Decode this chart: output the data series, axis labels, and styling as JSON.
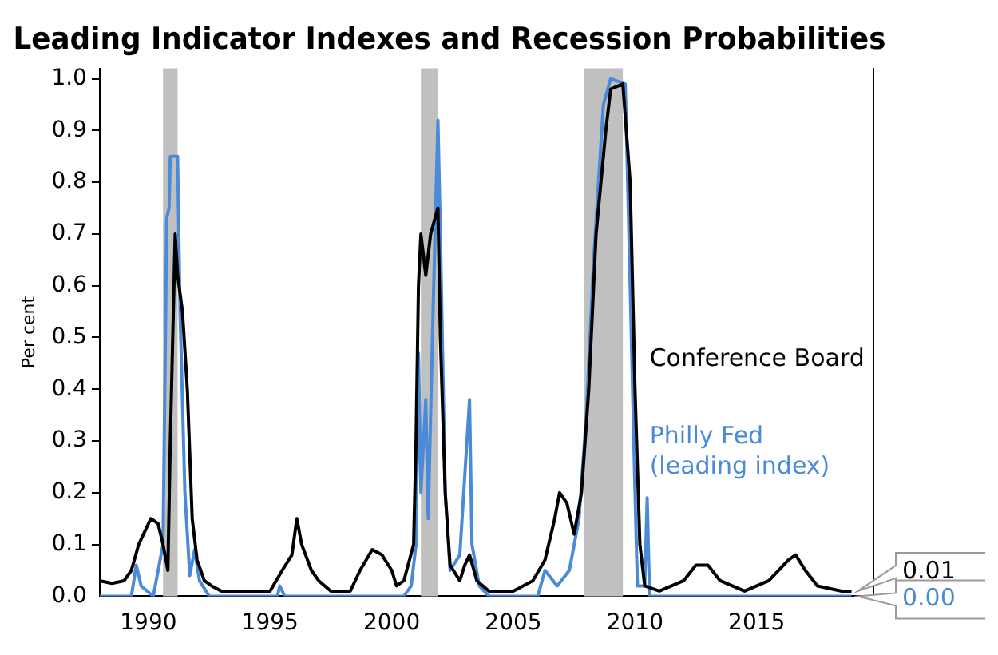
{
  "chart_data": {
    "type": "line",
    "title": "Leading Indicator Indexes and Recession Probabilities",
    "ylabel": "Per cent",
    "xlim": [
      1988,
      2019.8
    ],
    "xticks": [
      1990,
      1995,
      2000,
      2005,
      2010,
      2015
    ],
    "ylim": [
      0,
      1.02
    ],
    "yticks": [
      {
        "value": 0,
        "label": "0.0"
      },
      {
        "value": 0.1,
        "label": "0.1"
      },
      {
        "value": 0.2,
        "label": "0.2"
      },
      {
        "value": 0.3,
        "label": "0.3"
      },
      {
        "value": 0.4,
        "label": "0.4"
      },
      {
        "value": 0.5,
        "label": "0.5"
      },
      {
        "value": 0.6,
        "label": "0.6"
      },
      {
        "value": 0.7,
        "label": "0.7"
      },
      {
        "value": 0.8,
        "label": "0.8"
      },
      {
        "value": 0.9,
        "label": "0.9"
      },
      {
        "value": 1,
        "label": "1.0"
      }
    ],
    "grid": false,
    "legend": false,
    "marker": "none",
    "line_style": "solid",
    "bands": [
      {
        "axis": "x",
        "from": 1990.6,
        "to": 1991.2,
        "color": "#c0c0c0"
      },
      {
        "axis": "x",
        "from": 2001.2,
        "to": 2001.9,
        "color": "#c0c0c0"
      },
      {
        "axis": "x",
        "from": 2007.9,
        "to": 2009.5,
        "color": "#c0c0c0"
      }
    ],
    "series": [
      {
        "name": "Conference Board",
        "color": "#000000",
        "x": [
          1988,
          1988.5,
          1989,
          1989.3,
          1989.6,
          1989.9,
          1990.1,
          1990.4,
          1990.6,
          1990.8,
          1990.9,
          1991,
          1991.1,
          1991.2,
          1991.4,
          1991.6,
          1991.8,
          1992,
          1992.3,
          1992.6,
          1993,
          1994,
          1995,
          1995.5,
          1995.9,
          1996.1,
          1996.3,
          1996.7,
          1997,
          1997.5,
          1998.3,
          1998.7,
          1999.2,
          1999.6,
          2000,
          2000.2,
          2000.5,
          2000.9,
          2001,
          2001.1,
          2001.2,
          2001.4,
          2001.6,
          2001.9,
          2002,
          2002.2,
          2002.4,
          2002.8,
          2003,
          2003.2,
          2003.5,
          2004,
          2005,
          2005.8,
          2006.3,
          2006.7,
          2006.9,
          2007.2,
          2007.5,
          2007.8,
          2008.1,
          2008.4,
          2008.8,
          2009,
          2009.5,
          2009.8,
          2010,
          2010.2,
          2010.4,
          2011,
          2012,
          2012.5,
          2013,
          2013.5,
          2014.5,
          2015.5,
          2016.3,
          2016.6,
          2017,
          2017.5,
          2018.5,
          2018.9
        ],
        "values": [
          0.03,
          0.025,
          0.03,
          0.05,
          0.1,
          0.13,
          0.15,
          0.14,
          0.1,
          0.05,
          0.3,
          0.5,
          0.7,
          0.62,
          0.55,
          0.4,
          0.15,
          0.07,
          0.03,
          0.02,
          0.01,
          0.01,
          0.01,
          0.05,
          0.08,
          0.15,
          0.1,
          0.05,
          0.03,
          0.01,
          0.01,
          0.05,
          0.09,
          0.08,
          0.05,
          0.02,
          0.03,
          0.1,
          0.3,
          0.6,
          0.7,
          0.62,
          0.7,
          0.75,
          0.5,
          0.2,
          0.06,
          0.03,
          0.06,
          0.08,
          0.03,
          0.01,
          0.01,
          0.03,
          0.07,
          0.15,
          0.2,
          0.18,
          0.12,
          0.2,
          0.4,
          0.7,
          0.9,
          0.98,
          0.99,
          0.8,
          0.4,
          0.1,
          0.02,
          0.01,
          0.03,
          0.06,
          0.06,
          0.03,
          0.01,
          0.03,
          0.07,
          0.08,
          0.05,
          0.02,
          0.01,
          0.01
        ]
      },
      {
        "name": "Philly Fed\n(leading index)",
        "color": "#4a8ad8",
        "x": [
          1988,
          1989.3,
          1989.5,
          1989.7,
          1990.2,
          1990.6,
          1990.7,
          1990.75,
          1990.85,
          1990.9,
          1991.2,
          1991.3,
          1991.5,
          1991.7,
          1991.9,
          1992.1,
          1992.5,
          1995.3,
          1995.4,
          1995.6,
          2000.5,
          2000.8,
          2001,
          2001.1,
          2001.2,
          2001.4,
          2001.5,
          2001.7,
          2001.9,
          2002,
          2002.2,
          2002.4,
          2002.8,
          2003.2,
          2003.3,
          2003.6,
          2004,
          2006,
          2006.3,
          2006.8,
          2007.3,
          2007.5,
          2007.7,
          2008,
          2008.3,
          2008.7,
          2009,
          2009.6,
          2009.8,
          2010,
          2010.1,
          2010.4,
          2010.5,
          2010.6,
          2018.9
        ],
        "values": [
          0,
          0,
          0.06,
          0.02,
          0,
          0.1,
          0.5,
          0.73,
          0.75,
          0.85,
          0.85,
          0.55,
          0.2,
          0.04,
          0.09,
          0.03,
          0,
          0,
          0.02,
          0,
          0,
          0.02,
          0.1,
          0.47,
          0.2,
          0.38,
          0.15,
          0.55,
          0.92,
          0.7,
          0.2,
          0.05,
          0.08,
          0.38,
          0.1,
          0.02,
          0,
          0,
          0.05,
          0.02,
          0.05,
          0.1,
          0.15,
          0.35,
          0.65,
          0.95,
          1,
          0.99,
          0.6,
          0.2,
          0.02,
          0.02,
          0.19,
          0,
          0
        ]
      }
    ],
    "annotations": [
      {
        "text": "0.01",
        "x": 2018.9,
        "y": 0.01
      },
      {
        "text": "0.00",
        "x": 2018.9,
        "y": 0
      }
    ]
  }
}
